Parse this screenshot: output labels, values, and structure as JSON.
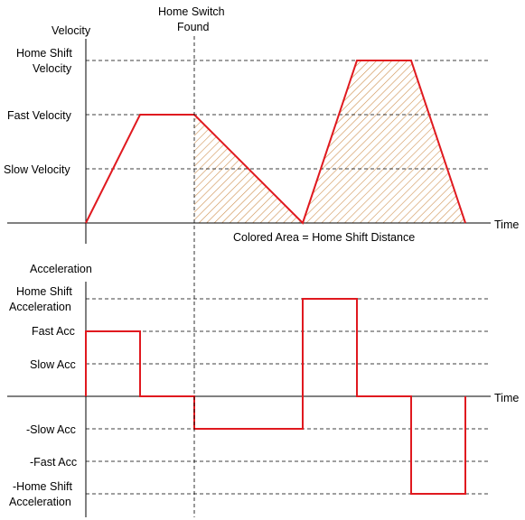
{
  "velocity_chart": {
    "y_axis_title": "Velocity",
    "x_axis_label": "Time",
    "marker_label_line1": "Home Switch",
    "marker_label_line2": "Found",
    "levels": {
      "home_shift_line1": "Home Shift",
      "home_shift_line2": "Velocity",
      "fast": "Fast Velocity",
      "slow": "Slow Velocity"
    },
    "area_caption": "Colored Area = Home Shift Distance"
  },
  "acceleration_chart": {
    "y_axis_title": "Acceleration",
    "x_axis_label": "Time",
    "levels": {
      "home_shift_pos_line1": "Home Shift",
      "home_shift_pos_line2": "Acceleration",
      "fast_pos": "Fast Acc",
      "slow_pos": "Slow Acc",
      "slow_neg": "-Slow Acc",
      "fast_neg": "-Fast Acc",
      "home_shift_neg_line1": "-Home Shift",
      "home_shift_neg_line2": "Acceleration"
    }
  },
  "colors": {
    "signal": "#e0191f",
    "hatch": "#c9853f",
    "axis": "#000000",
    "grid": "#000000"
  }
}
